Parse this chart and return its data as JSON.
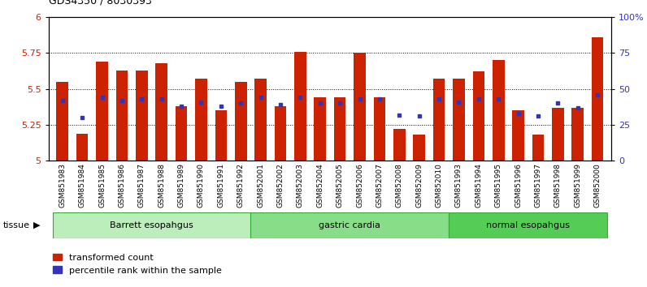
{
  "title": "GDS4350 / 8030393",
  "samples": [
    "GSM851983",
    "GSM851984",
    "GSM851985",
    "GSM851986",
    "GSM851987",
    "GSM851988",
    "GSM851989",
    "GSM851990",
    "GSM851991",
    "GSM851992",
    "GSM852001",
    "GSM852002",
    "GSM852003",
    "GSM852004",
    "GSM852005",
    "GSM852006",
    "GSM852007",
    "GSM852008",
    "GSM852009",
    "GSM852010",
    "GSM851993",
    "GSM851994",
    "GSM851995",
    "GSM851996",
    "GSM851997",
    "GSM851998",
    "GSM851999",
    "GSM852000"
  ],
  "red_values": [
    5.55,
    5.19,
    5.69,
    5.63,
    5.63,
    5.68,
    5.38,
    5.57,
    5.35,
    5.55,
    5.57,
    5.38,
    5.76,
    5.44,
    5.44,
    5.75,
    5.44,
    5.22,
    5.18,
    5.57,
    5.57,
    5.62,
    5.7,
    5.35,
    5.18,
    5.37,
    5.37,
    5.86
  ],
  "blue_values": [
    42,
    30,
    44,
    42,
    43,
    43,
    38,
    41,
    38,
    40,
    44,
    39,
    44,
    40,
    40,
    43,
    43,
    32,
    31,
    43,
    41,
    43,
    43,
    33,
    31,
    40,
    37,
    46
  ],
  "groups": [
    {
      "label": "Barrett esopahgus",
      "start": 0,
      "end": 9
    },
    {
      "label": "gastric cardia",
      "start": 10,
      "end": 19
    },
    {
      "label": "normal esopahgus",
      "start": 20,
      "end": 27
    }
  ],
  "group_colors": [
    "#BBEEBB",
    "#88DD88",
    "#55CC55"
  ],
  "ylim_left": [
    5.0,
    6.0
  ],
  "ylim_right": [
    0,
    100
  ],
  "yticks_left": [
    5.0,
    5.25,
    5.5,
    5.75,
    6.0
  ],
  "ytick_labels_left": [
    "5",
    "5.25",
    "5.5",
    "5.75",
    "6"
  ],
  "yticks_right": [
    0,
    25,
    50,
    75,
    100
  ],
  "ytick_labels_right": [
    "0",
    "25",
    "50",
    "75",
    "100%"
  ],
  "bar_color": "#CC2200",
  "dot_color": "#3333BB",
  "legend_red": "transformed count",
  "legend_blue": "percentile rank within the sample",
  "tissue_label": "tissue"
}
